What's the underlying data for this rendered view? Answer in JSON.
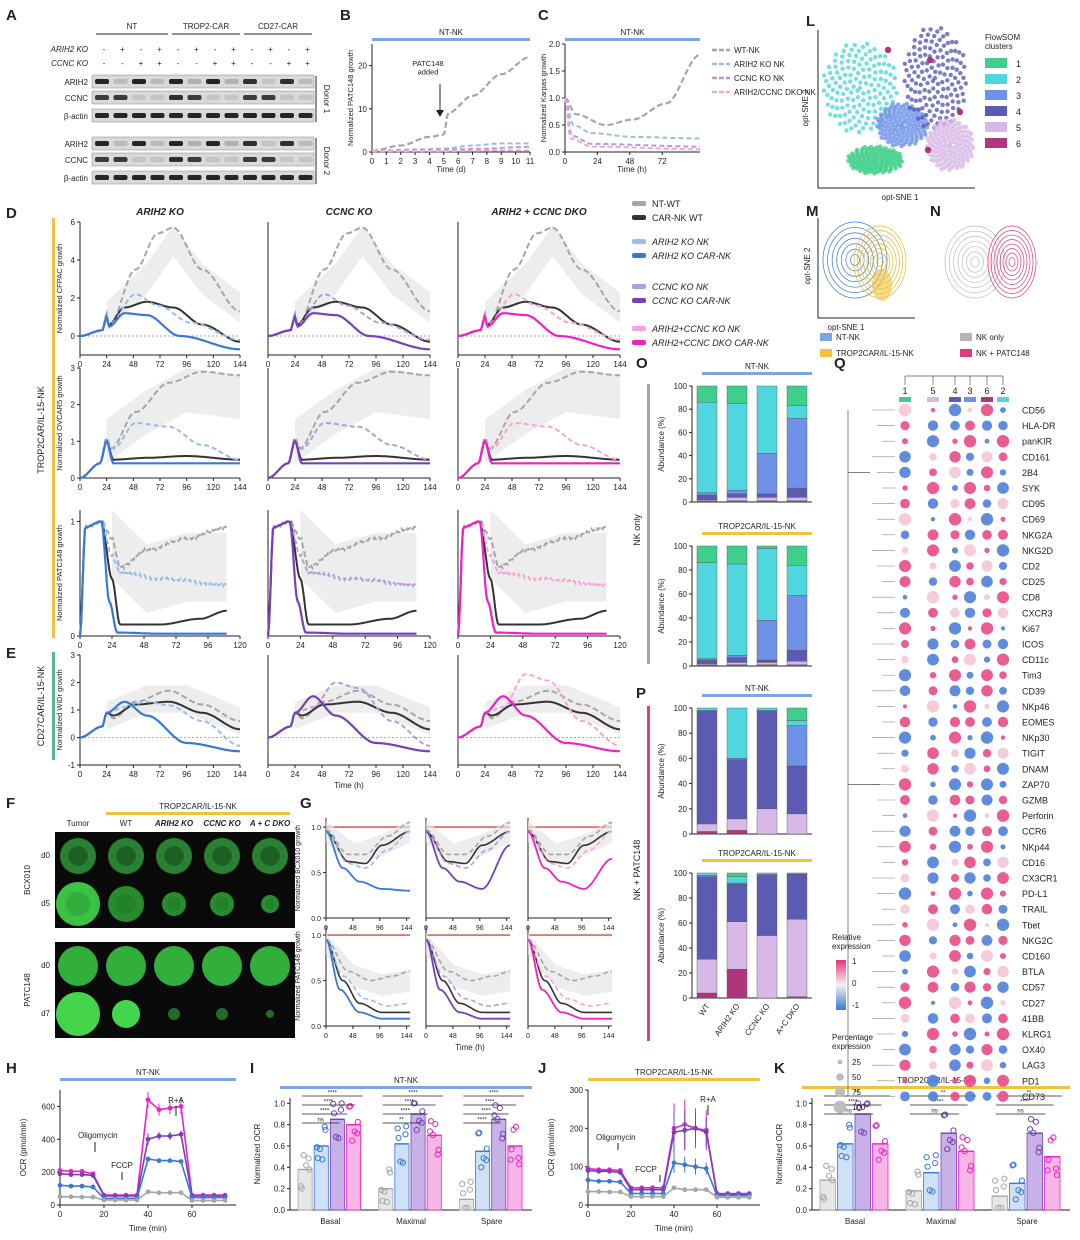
{
  "panels": {
    "A": {
      "label": "A",
      "groups": [
        "NT",
        "TROP2-CAR",
        "CD27-CAR"
      ],
      "row_labels": [
        "ARIH2 KO",
        "CCNC KO"
      ],
      "ko_signs": [
        [
          "-",
          "+",
          "-",
          "+"
        ],
        [
          "-",
          "-",
          "+",
          "+"
        ]
      ],
      "blot_labels": [
        "ARIH2",
        "CCNC",
        "β-actin"
      ],
      "donors": [
        "Donor 1",
        "Donor 2"
      ]
    },
    "B": {
      "label": "B",
      "bar_title": "NT-NK",
      "annotation": "PATC148\nadded",
      "ylabel": "Normalized PATC148 growth",
      "xlabel": "Time (d)",
      "yticks": [
        "0",
        "10",
        "20"
      ],
      "xticks": [
        "0",
        "1",
        "2",
        "3",
        "4",
        "5",
        "6",
        "7",
        "8",
        "9",
        "10",
        "11"
      ]
    },
    "C": {
      "label": "C",
      "bar_title": "NT-NK",
      "ylabel": "Normalized Karpas growth",
      "xlabel": "Time (h)",
      "yticks": [
        "0.0",
        "0.5",
        "1.0",
        "1.5",
        "2.0"
      ],
      "xticks": [
        "0",
        "24",
        "48",
        "72"
      ],
      "legend": [
        "WT-NK",
        "ARIH2 KO NK",
        "CCNC KO NK",
        "ARIH2/CCNC DKO NK"
      ]
    },
    "D": {
      "label": "D",
      "col_titles": [
        "ARIH2 KO",
        "CCNC KO",
        "ARIH2 + CCNC DKO"
      ],
      "side_label": "TROP2CAR/IL-15-NK",
      "row_ylabels": [
        "Normalized CFPAC growth",
        "Normalized OVCAR5 growth",
        "Normalized PATC148 growth"
      ],
      "row1_yticks": [
        "0",
        "2",
        "4",
        "6"
      ],
      "row2_yticks": [
        "0",
        "1",
        "2",
        "3"
      ],
      "row3_yticks": [
        "0",
        "1"
      ],
      "xticks_144": [
        "0",
        "24",
        "48",
        "72",
        "96",
        "120",
        "144"
      ],
      "xticks_120": [
        "0",
        "24",
        "48",
        "72",
        "96",
        "120"
      ],
      "legend": [
        "NT-WT",
        "CAR-NK WT",
        "ARIH2 KO NK",
        "ARIH2 KO CAR-NK",
        "CCNC KO NK",
        "CCNC KO CAR-NK",
        "ARIH2+CCNC KO NK",
        "ARIH2+CCNC DKO CAR-NK"
      ]
    },
    "E": {
      "label": "E",
      "side_label": "CD27CAR/IL-15-NK",
      "ylabel": "Normalized WiDr growth",
      "yticks": [
        "-1",
        "0",
        "1",
        "2",
        "3"
      ],
      "xticks": [
        "0",
        "24",
        "48",
        "72",
        "96",
        "120",
        "144"
      ],
      "xlabel": "Time (h)"
    },
    "F": {
      "label": "F",
      "bar_title": "TROP2CAR/IL-15-NK",
      "columns": [
        "Tumor",
        "WT",
        "ARIH2 KO",
        "CCNC KO",
        "A + C DKO"
      ],
      "tumors": [
        "BCX010",
        "PATC148"
      ],
      "days": [
        "d0",
        "d5",
        "d0",
        "d7"
      ]
    },
    "G": {
      "label": "G",
      "ylabels": [
        "Normalized BCX010 growth",
        "Normalized PATC148 growth"
      ],
      "yticks": [
        "0.0",
        "0.5",
        "1.0"
      ],
      "xticks": [
        "0",
        "48",
        "96",
        "144"
      ],
      "xlabel": "Time (h)"
    },
    "H": {
      "label": "H",
      "bar_title": "NT-NK",
      "ylabel": "OCR (pmol/min)",
      "xlabel": "Time (min)",
      "yticks": [
        "0",
        "200",
        "400",
        "600"
      ],
      "xticks": [
        "0",
        "20",
        "40",
        "60"
      ],
      "annotations": [
        "Oligomycin",
        "FCCP",
        "R+A"
      ]
    },
    "I": {
      "label": "I",
      "bar_title": "NT-NK",
      "ylabel": "Normalized OCR",
      "yticks": [
        "0.0",
        "0.2",
        "0.4",
        "0.6",
        "0.8",
        "1.0"
      ],
      "groups": [
        "Basal",
        "Maximal",
        "Spare"
      ],
      "sig": [
        [
          "****",
          "****",
          "****",
          "ns"
        ],
        [
          "****",
          "****",
          "****",
          "**"
        ],
        [
          "****",
          "****",
          "****",
          "****"
        ]
      ]
    },
    "J": {
      "label": "J",
      "bar_title": "TROP2CAR/IL-15-NK",
      "ylabel": "OCR (pmol/min)",
      "xlabel": "Time (min)",
      "yticks": [
        "0",
        "100",
        "200",
        "300"
      ],
      "xticks": [
        "0",
        "20",
        "40",
        "60"
      ],
      "annotations": [
        "Oligomycin",
        "FCCP",
        "R+A"
      ]
    },
    "K": {
      "label": "K",
      "bar_title": "TROP2CAR/IL-15-NK",
      "ylabel": "Normalized OCR",
      "yticks": [
        "0.0",
        "0.2",
        "0.4",
        "0.6",
        "0.8",
        "1.0"
      ],
      "groups": [
        "Basal",
        "Maximal",
        "Spare"
      ],
      "sig": [
        [
          "**",
          "****",
          "ns"
        ],
        [
          "**",
          "****",
          "ns"
        ],
        [
          "**",
          "****",
          "ns"
        ]
      ]
    },
    "L": {
      "label": "L",
      "xlabel": "opt-SNE 1",
      "ylabel": "opt-SNE 2",
      "legend_title": "FlowSOM\nclusters",
      "clusters": [
        "1",
        "2",
        "3",
        "4",
        "5",
        "6"
      ]
    },
    "M": {
      "label": "M",
      "xlabel": "opt-SNE 1",
      "ylabel": "opt-SNE 2"
    },
    "N": {
      "label": "N"
    },
    "MN_legend": [
      "NT-NK",
      "NK only",
      "TROP2CAR/IL-15-NK",
      "NK + PATC148"
    ],
    "O": {
      "label": "O",
      "side_label": "NK only",
      "titles": [
        "NT-NK",
        "TROP2CAR/IL-15-NK"
      ],
      "ylabel": "Abundance (%)",
      "yticks": [
        "0",
        "20",
        "40",
        "60",
        "80",
        "100"
      ]
    },
    "P": {
      "label": "P",
      "side_label": "NK + PATC148",
      "titles": [
        "NT-NK",
        "TROP2CAR/IL-15-NK"
      ],
      "ylabel": "Abundance (%)",
      "yticks": [
        "0",
        "20",
        "40",
        "60",
        "80",
        "100"
      ],
      "xcats": [
        "WT",
        "ARIH2 KO",
        "CCNC KO",
        "A+C DKO"
      ]
    },
    "Q": {
      "label": "Q",
      "cluster_order": [
        "1",
        "5",
        "4",
        "3",
        "6",
        "2"
      ],
      "markers": [
        "CD56",
        "HLA-DR",
        "panKIR",
        "CD161",
        "2B4",
        "SYK",
        "CD95",
        "CD69",
        "NKG2A",
        "NKG2D",
        "CD2",
        "CD25",
        "CD8",
        "CXCR3",
        "Ki67",
        "ICOS",
        "CD11c",
        "Tim3",
        "CD39",
        "NKp46",
        "EOMES",
        "NKp30",
        "TIGIT",
        "DNAM",
        "ZAP70",
        "GZMB",
        "Perforin",
        "CCR6",
        "NKp44",
        "CD16",
        "CX3CR1",
        "PD-L1",
        "TRAIL",
        "Tbet",
        "NKG2C",
        "CD160",
        "BTLA",
        "CD57",
        "CD27",
        "41BB",
        "KLRG1",
        "OX40",
        "LAG3",
        "PD1",
        "CD73"
      ],
      "rel_title": "Relative\nexpression",
      "rel_ticks": [
        "1",
        "0",
        "-1"
      ],
      "pct_title": "Percentage\nexpression",
      "pct_ticks": [
        "25",
        "50",
        "75",
        "100"
      ]
    }
  },
  "colors": {
    "nt": "#a6a6a6",
    "car_wt": "#333333",
    "arih2_nk": "#9bbbe8",
    "arih2_car": "#3a78d6",
    "ccnc_nk": "#b79bd9",
    "ccnc_car": "#7540b8",
    "dko_nk": "#f5a3d8",
    "dko_car": "#ee22c4",
    "trop2": "#f2c33a",
    "cd27": "#52b79a",
    "ntbar": "#7da5e3",
    "patc": "#d9417a",
    "cl1": "#3ecf8a",
    "cl2": "#4fd6de",
    "cl3": "#6f92e8",
    "cl4": "#5b5bb4",
    "cl5": "#d8b8e6",
    "cl6": "#b0357a"
  },
  "chart_data": [
    {
      "type": "table",
      "name": "O NT-NK stacked",
      "categories": [
        "WT",
        "ARIH2 KO",
        "CCNC KO",
        "A+C DKO"
      ],
      "series": [
        {
          "name": "6",
          "values": [
            1,
            1,
            1,
            1
          ]
        },
        {
          "name": "5",
          "values": [
            1,
            3,
            3,
            3
          ]
        },
        {
          "name": "4",
          "values": [
            4,
            3,
            3,
            8
          ]
        },
        {
          "name": "3",
          "values": [
            2,
            3,
            35,
            60
          ]
        },
        {
          "name": "2",
          "values": [
            78,
            75,
            58,
            11
          ]
        },
        {
          "name": "1",
          "values": [
            14,
            15,
            0,
            17
          ]
        }
      ]
    },
    {
      "type": "table",
      "name": "O TROP2 stacked",
      "categories": [
        "WT",
        "ARIH2 KO",
        "CCNC KO",
        "A+C DKO"
      ],
      "series": [
        {
          "name": "6",
          "values": [
            1,
            1,
            1,
            1
          ]
        },
        {
          "name": "5",
          "values": [
            1,
            2,
            2,
            3
          ]
        },
        {
          "name": "4",
          "values": [
            3,
            4,
            2,
            9
          ]
        },
        {
          "name": "3",
          "values": [
            1,
            2,
            33,
            46
          ]
        },
        {
          "name": "2",
          "values": [
            80,
            76,
            60,
            25
          ]
        },
        {
          "name": "1",
          "values": [
            14,
            15,
            2,
            16
          ]
        }
      ]
    },
    {
      "type": "table",
      "name": "P NT-NK stacked",
      "categories": [
        "WT",
        "ARIH2 KO",
        "CCNC KO",
        "A+C DKO"
      ],
      "series": [
        {
          "name": "6",
          "values": [
            2,
            3,
            0,
            0
          ]
        },
        {
          "name": "5",
          "values": [
            6,
            9,
            20,
            16
          ]
        },
        {
          "name": "4",
          "values": [
            90,
            47,
            78,
            38
          ]
        },
        {
          "name": "3",
          "values": [
            0,
            1,
            0,
            32
          ]
        },
        {
          "name": "2",
          "values": [
            2,
            40,
            2,
            4
          ]
        },
        {
          "name": "1",
          "values": [
            0,
            0,
            0,
            10
          ]
        }
      ]
    },
    {
      "type": "table",
      "name": "P TROP2 stacked",
      "categories": [
        "WT",
        "ARIH2 KO",
        "CCNC KO",
        "A+C DKO"
      ],
      "series": [
        {
          "name": "6",
          "values": [
            4,
            23,
            0,
            1
          ]
        },
        {
          "name": "5",
          "values": [
            27,
            38,
            50,
            62
          ]
        },
        {
          "name": "4",
          "values": [
            66,
            30,
            48,
            36
          ]
        },
        {
          "name": "3",
          "values": [
            1,
            1,
            1,
            1
          ]
        },
        {
          "name": "2",
          "values": [
            2,
            5,
            1,
            0
          ]
        },
        {
          "name": "1",
          "values": [
            0,
            3,
            0,
            0
          ]
        }
      ]
    }
  ]
}
